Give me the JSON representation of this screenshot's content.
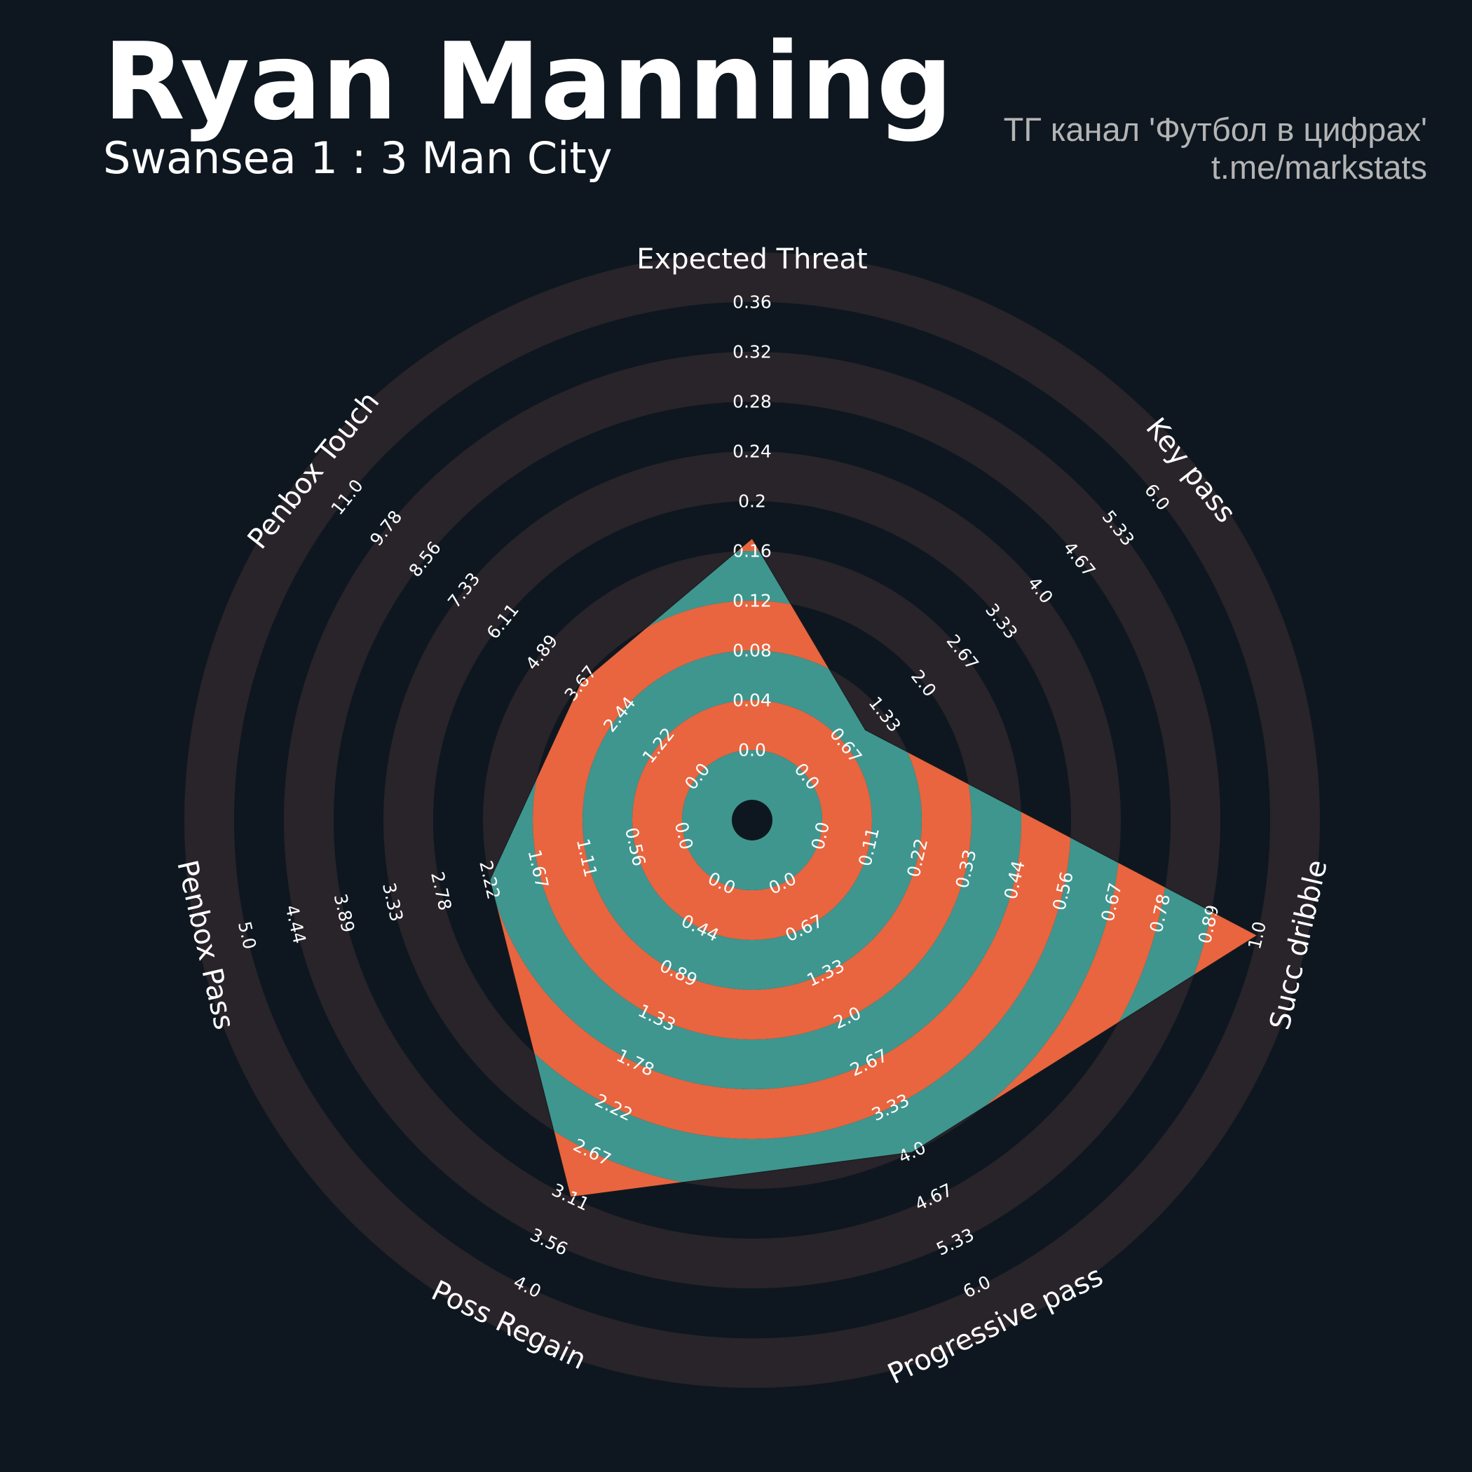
{
  "header": {
    "title": "Ryan Manning",
    "subtitle": "Swansea 1 : 3 Man City",
    "credit_line1": "ТГ канал 'Футбол в цифрах'",
    "credit_line2": "t.me/markstats"
  },
  "colors": {
    "background": "#0e1720",
    "ring": "#28242a",
    "fill_a": "#e8653f",
    "fill_b": "#3e968f",
    "text": "#ffffff",
    "credit": "#b4b4b4"
  },
  "chart_data": {
    "type": "radar",
    "title": "",
    "params": [
      {
        "name": "Expected Threat",
        "ticks": [
          "0.0",
          "0.04",
          "0.08",
          "0.12",
          "0.16",
          "0.2",
          "0.24",
          "0.28",
          "0.32",
          "0.36"
        ],
        "min": 0.0,
        "max": 0.36
      },
      {
        "name": "Key pass",
        "ticks": [
          "0.0",
          "0.67",
          "1.33",
          "2.0",
          "2.67",
          "3.33",
          "4.0",
          "4.67",
          "5.33",
          "6.0"
        ],
        "min": 0.0,
        "max": 6.0
      },
      {
        "name": "Succ dribble",
        "ticks": [
          "0.0",
          "0.11",
          "0.22",
          "0.33",
          "0.44",
          "0.56",
          "0.67",
          "0.78",
          "0.89",
          "1.0"
        ],
        "min": 0.0,
        "max": 1.0
      },
      {
        "name": "Progressive pass",
        "ticks": [
          "0.0",
          "0.67",
          "1.33",
          "2.0",
          "2.67",
          "3.33",
          "4.0",
          "4.67",
          "5.33",
          "6.0"
        ],
        "min": 0.0,
        "max": 6.0
      },
      {
        "name": "Poss Regain",
        "ticks": [
          "0.0",
          "0.44",
          "0.89",
          "1.33",
          "1.78",
          "2.22",
          "2.67",
          "3.11",
          "3.56",
          "4.0"
        ],
        "min": 0.0,
        "max": 4.0
      },
      {
        "name": "Penbox Pass",
        "ticks": [
          "0.0",
          "0.56",
          "1.11",
          "1.67",
          "2.22",
          "2.78",
          "3.33",
          "3.89",
          "4.44",
          "5.0"
        ],
        "min": 0.0,
        "max": 5.0
      },
      {
        "name": "Penbox Touch",
        "ticks": [
          "0.0",
          "1.22",
          "2.44",
          "3.67",
          "4.89",
          "6.11",
          "7.33",
          "8.56",
          "9.78",
          "11.0"
        ],
        "min": 0.0,
        "max": 11.0
      }
    ],
    "values": [
      0.17,
      1.0,
      1.0,
      4.0,
      3.11,
      2.22,
      3.67
    ]
  }
}
